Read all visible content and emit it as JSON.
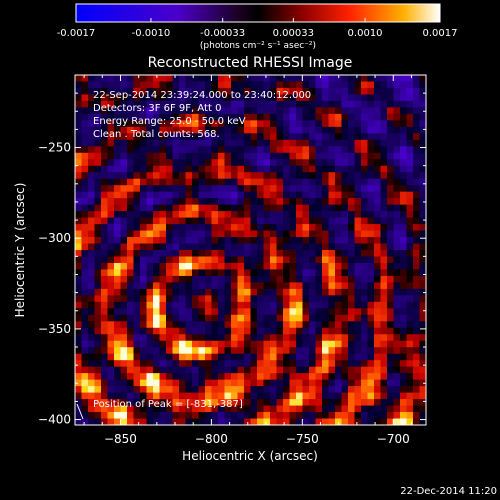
{
  "chart_data": {
    "type": "heatmap",
    "title": "Reconstructed RHESSI Image",
    "xlabel": "Heliocentric X (arcsec)",
    "ylabel": "Heliocentric Y (arcsec)",
    "xlim": [
      -875,
      -682
    ],
    "ylim": [
      -403,
      -210
    ],
    "x_ticks": [
      -850,
      -800,
      -750,
      -700
    ],
    "y_ticks": [
      -250,
      -300,
      -350,
      -400
    ],
    "colorbar": {
      "ticks": [
        "-0.0017",
        "-0.0010",
        "-0.00033",
        "0.00033",
        "0.0010",
        "0.0017"
      ],
      "tick_values": [
        -0.0017,
        -0.001,
        -0.00033,
        0.00033,
        0.001,
        0.0017
      ],
      "range": [
        -0.0017,
        0.0017
      ],
      "units": "(photons cm⁻² s⁻¹ asec⁻²)"
    },
    "annotations": [
      "22-Sep-2014 23:39:24.000 to 23:40:12.000",
      "Detectors: 3F 6F 9F, Att 0",
      "Energy Range: 25.0 - 50.0 keV",
      "Clean  .  Total counts: 568."
    ],
    "peak_label": "Position of Peak = [-831,-387]",
    "peak": {
      "x": -831,
      "y": -387
    },
    "timestamp": "22-Dec-2014 11:20",
    "colors": {
      "background": "#000000",
      "foreground": "#ffffff",
      "negative_min": "#0000ff",
      "zero": "#000000",
      "positive_mid": "#ff0000",
      "positive_max": "#ffffff"
    }
  }
}
